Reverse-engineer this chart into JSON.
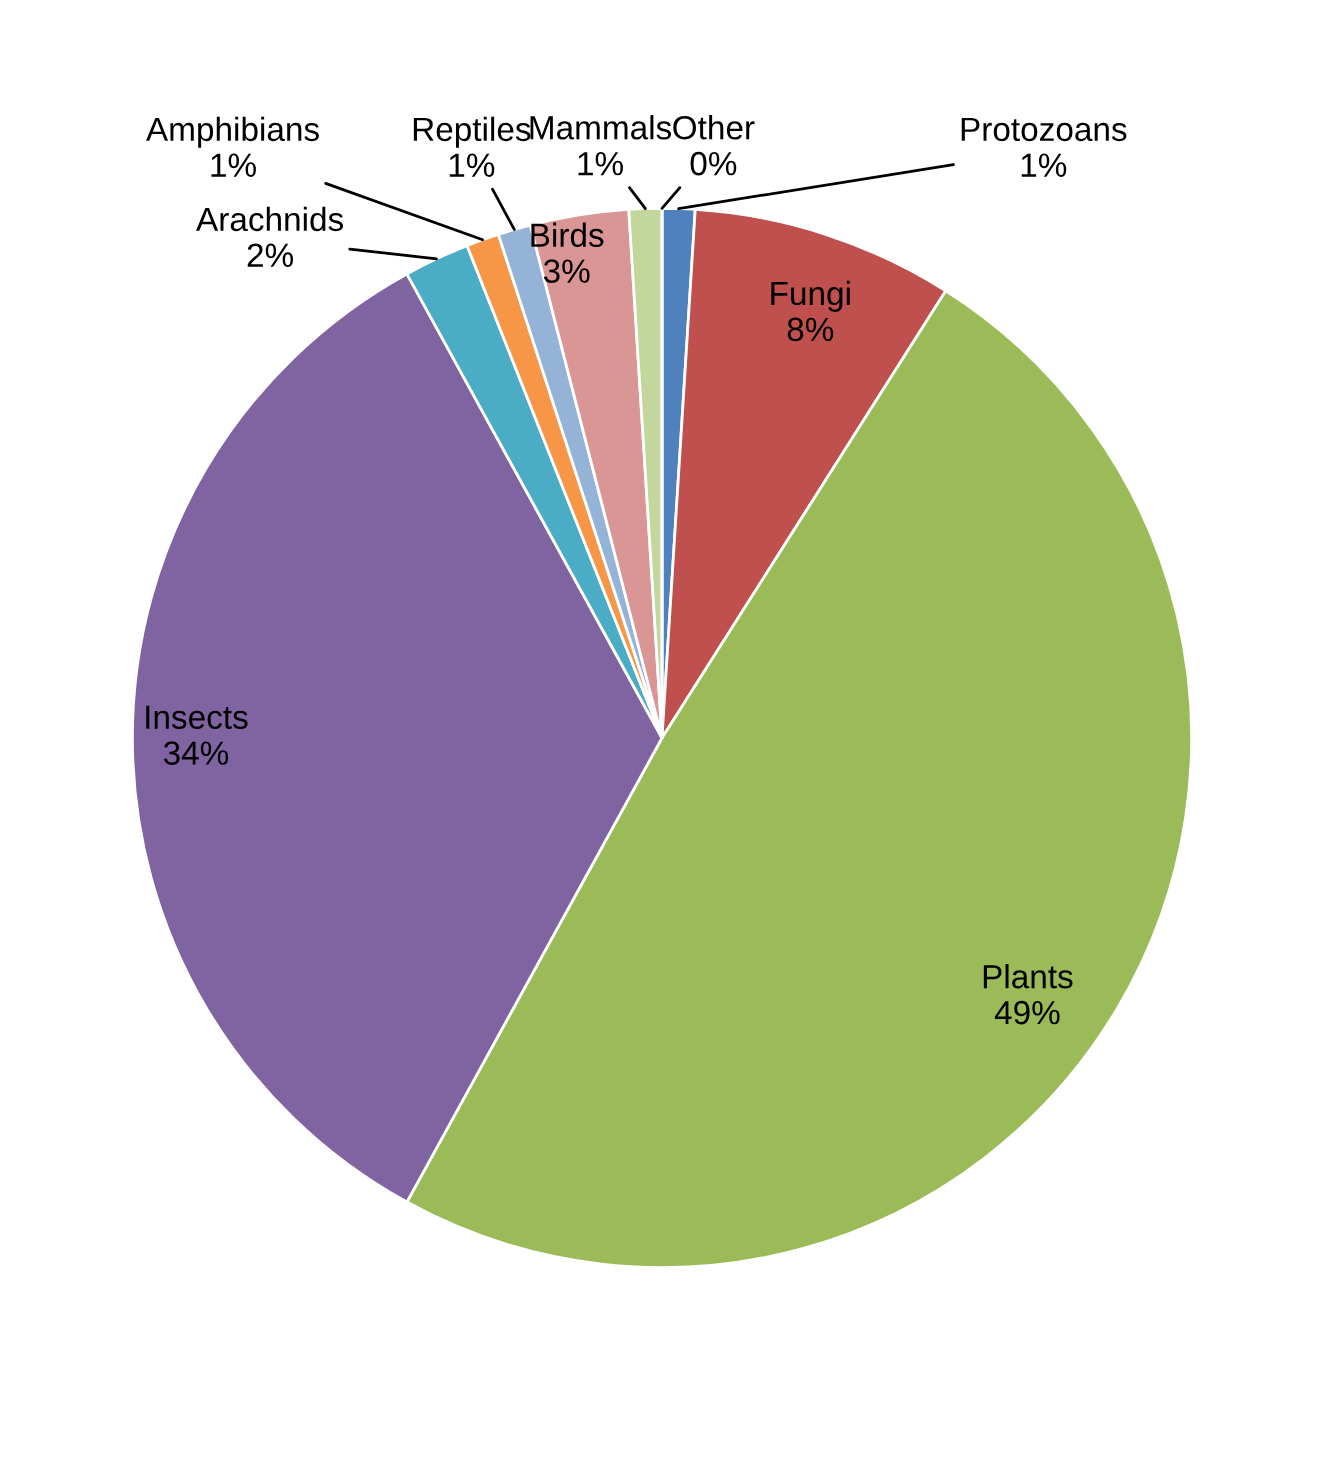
{
  "chart_data": {
    "type": "pie",
    "categories": [
      "Protozoans",
      "Fungi",
      "Plants",
      "Insects",
      "Arachnids",
      "Amphibians",
      "Reptiles",
      "Birds",
      "Mammals",
      "Other"
    ],
    "values": [
      1,
      8,
      49,
      34,
      2,
      1,
      1,
      3,
      1,
      0
    ],
    "value_labels": [
      "1%",
      "8%",
      "49%",
      "34%",
      "2%",
      "1%",
      "1%",
      "3%",
      "1%",
      "0%"
    ],
    "colors": [
      "#4f81bd",
      "#c0504d",
      "#9bbb59",
      "#8064a2",
      "#4bacc6",
      "#f79646",
      "#95b3d7",
      "#d99694",
      "#c3d69b",
      "#b2a1c7"
    ]
  }
}
